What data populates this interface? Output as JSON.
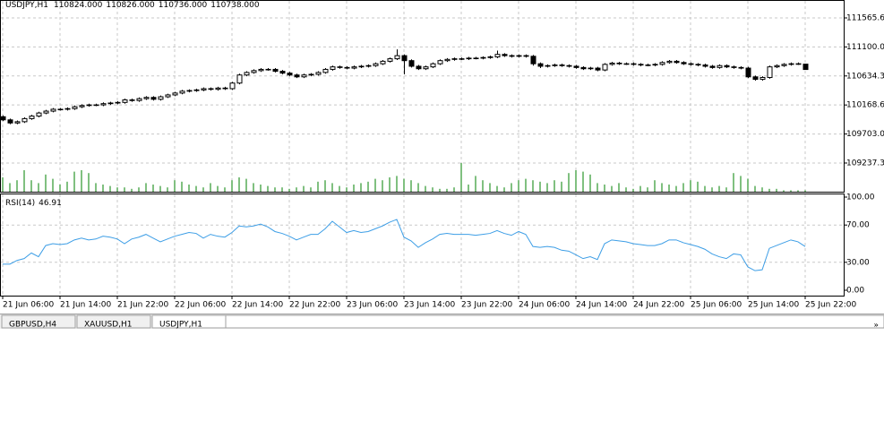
{
  "chart_data": [
    {
      "type": "candlestick",
      "title": "USDJPY,H1",
      "last_bar_labels": [
        "110824.000",
        "110826.000",
        "110736.000",
        "110738.000"
      ],
      "ohlc": [
        [
          109980,
          110000,
          109910,
          109930
        ],
        [
          109930,
          109950,
          109860,
          109880
        ],
        [
          109880,
          109920,
          109860,
          109900
        ],
        [
          109900,
          109970,
          109880,
          109950
        ],
        [
          109950,
          110010,
          109930,
          109990
        ],
        [
          109990,
          110060,
          109970,
          110040
        ],
        [
          110040,
          110090,
          110020,
          110070
        ],
        [
          110070,
          110120,
          110050,
          110100
        ],
        [
          110100,
          110120,
          110080,
          110100
        ],
        [
          110100,
          110130,
          110080,
          110110
        ],
        [
          110110,
          110160,
          110090,
          110140
        ],
        [
          110140,
          110180,
          110120,
          110160
        ],
        [
          110160,
          110190,
          110140,
          110170
        ],
        [
          110170,
          110190,
          110150,
          110170
        ],
        [
          110170,
          110210,
          110150,
          110190
        ],
        [
          110190,
          110220,
          110170,
          110200
        ],
        [
          110200,
          110230,
          110180,
          110210
        ],
        [
          110210,
          110270,
          110190,
          110250
        ],
        [
          110250,
          110270,
          110220,
          110240
        ],
        [
          110240,
          110290,
          110220,
          110270
        ],
        [
          110270,
          110310,
          110250,
          110290
        ],
        [
          110290,
          110310,
          110240,
          110260
        ],
        [
          110260,
          110320,
          110240,
          110300
        ],
        [
          110300,
          110350,
          110280,
          110330
        ],
        [
          110330,
          110380,
          110310,
          110360
        ],
        [
          110360,
          110410,
          110340,
          110390
        ],
        [
          110390,
          110420,
          110370,
          110400
        ],
        [
          110400,
          110430,
          110380,
          110410
        ],
        [
          110410,
          110450,
          110390,
          110430
        ],
        [
          110430,
          110450,
          110400,
          110420
        ],
        [
          110420,
          110460,
          110400,
          110440
        ],
        [
          110440,
          110460,
          110410,
          110430
        ],
        [
          110430,
          110540,
          110410,
          110520
        ],
        [
          110520,
          110670,
          110500,
          110650
        ],
        [
          110650,
          110710,
          110630,
          110690
        ],
        [
          110690,
          110740,
          110670,
          110720
        ],
        [
          110720,
          110760,
          110700,
          110740
        ],
        [
          110740,
          110760,
          110720,
          110740
        ],
        [
          110740,
          110760,
          110690,
          110710
        ],
        [
          110710,
          110730,
          110660,
          110680
        ],
        [
          110680,
          110700,
          110630,
          110650
        ],
        [
          110650,
          110670,
          110600,
          110620
        ],
        [
          110620,
          110670,
          110600,
          110650
        ],
        [
          110650,
          110680,
          110630,
          110660
        ],
        [
          110660,
          110710,
          110640,
          110690
        ],
        [
          110690,
          110760,
          110670,
          110740
        ],
        [
          110740,
          110800,
          110720,
          110780
        ],
        [
          110780,
          110800,
          110750,
          110770
        ],
        [
          110770,
          110790,
          110740,
          110760
        ],
        [
          110760,
          110800,
          110740,
          110780
        ],
        [
          110780,
          110810,
          110760,
          110790
        ],
        [
          110790,
          110820,
          110770,
          110800
        ],
        [
          110800,
          110850,
          110780,
          110830
        ],
        [
          110830,
          110890,
          110810,
          110870
        ],
        [
          110870,
          110930,
          110850,
          110910
        ],
        [
          110910,
          111060,
          110890,
          110960
        ],
        [
          110960,
          110980,
          110660,
          110880
        ],
        [
          110880,
          110900,
          110770,
          110790
        ],
        [
          110790,
          110810,
          110730,
          110750
        ],
        [
          110750,
          110800,
          110730,
          110780
        ],
        [
          110780,
          110850,
          110760,
          110830
        ],
        [
          110830,
          110900,
          110810,
          110880
        ],
        [
          110880,
          110920,
          110860,
          110900
        ],
        [
          110900,
          110930,
          110880,
          110910
        ],
        [
          110910,
          110930,
          110890,
          110910
        ],
        [
          110910,
          110940,
          110890,
          110920
        ],
        [
          110920,
          110940,
          110900,
          110920
        ],
        [
          110920,
          110950,
          110900,
          110930
        ],
        [
          110930,
          110960,
          110910,
          110940
        ],
        [
          110940,
          111040,
          110920,
          110980
        ],
        [
          110980,
          111000,
          110940,
          110960
        ],
        [
          110960,
          110980,
          110930,
          110950
        ],
        [
          110950,
          110980,
          110930,
          110960
        ],
        [
          110960,
          110980,
          110930,
          110950
        ],
        [
          110950,
          110970,
          110800,
          110830
        ],
        [
          110830,
          110850,
          110760,
          110790
        ],
        [
          110790,
          110820,
          110770,
          110800
        ],
        [
          110800,
          110830,
          110780,
          110810
        ],
        [
          110810,
          110830,
          110780,
          110800
        ],
        [
          110800,
          110820,
          110770,
          110790
        ],
        [
          110790,
          110810,
          110750,
          110770
        ],
        [
          110770,
          110790,
          110730,
          110750
        ],
        [
          110750,
          110780,
          110730,
          110760
        ],
        [
          110760,
          110780,
          110710,
          110730
        ],
        [
          110730,
          110840,
          110710,
          110820
        ],
        [
          110820,
          110860,
          110800,
          110840
        ],
        [
          110840,
          110860,
          110810,
          110830
        ],
        [
          110830,
          110850,
          110810,
          110830
        ],
        [
          110830,
          110850,
          110800,
          110820
        ],
        [
          110820,
          110840,
          110790,
          110810
        ],
        [
          110810,
          110830,
          110790,
          110810
        ],
        [
          110810,
          110840,
          110790,
          110820
        ],
        [
          110820,
          110870,
          110800,
          110850
        ],
        [
          110850,
          110890,
          110830,
          110870
        ],
        [
          110870,
          110890,
          110830,
          110850
        ],
        [
          110850,
          110870,
          110810,
          110830
        ],
        [
          110830,
          110850,
          110800,
          110820
        ],
        [
          110820,
          110840,
          110790,
          110810
        ],
        [
          110810,
          110830,
          110770,
          110790
        ],
        [
          110790,
          110810,
          110750,
          110770
        ],
        [
          110770,
          110820,
          110750,
          110800
        ],
        [
          110800,
          110820,
          110760,
          110780
        ],
        [
          110780,
          110800,
          110750,
          110770
        ],
        [
          110770,
          110790,
          110740,
          110760
        ],
        [
          110760,
          110780,
          110600,
          110620
        ],
        [
          110620,
          110640,
          110560,
          110580
        ],
        [
          110580,
          110630,
          110560,
          110610
        ],
        [
          110610,
          110800,
          110590,
          110780
        ],
        [
          110780,
          110820,
          110760,
          110800
        ],
        [
          110800,
          110840,
          110780,
          110820
        ],
        [
          110820,
          110850,
          110800,
          110830
        ],
        [
          110830,
          110850,
          110810,
          110830
        ],
        [
          110824,
          110826,
          110736,
          110738
        ]
      ],
      "volumes": [
        500,
        300,
        400,
        750,
        400,
        300,
        600,
        450,
        250,
        350,
        700,
        750,
        650,
        300,
        250,
        200,
        150,
        150,
        100,
        150,
        300,
        250,
        200,
        150,
        400,
        350,
        250,
        200,
        150,
        300,
        200,
        150,
        400,
        500,
        450,
        300,
        250,
        200,
        150,
        150,
        100,
        150,
        200,
        150,
        350,
        400,
        300,
        200,
        150,
        250,
        300,
        350,
        450,
        400,
        500,
        550,
        450,
        400,
        300,
        200,
        150,
        100,
        100,
        150,
        1000,
        250,
        550,
        400,
        300,
        200,
        150,
        300,
        400,
        450,
        400,
        350,
        300,
        400,
        350,
        650,
        750,
        700,
        600,
        300,
        250,
        200,
        300,
        150,
        100,
        200,
        150,
        400,
        300,
        250,
        200,
        300,
        400,
        350,
        200,
        150,
        200,
        150,
        650,
        550,
        450,
        200,
        150,
        100,
        100,
        50,
        50,
        50,
        50
      ],
      "volume_lim": [
        0,
        1000
      ],
      "ylim": [
        108777,
        111853
      ],
      "yticks": [
        109237.33,
        {
          "value": 109703,
          "label": "109703.00"
        },
        110168.66,
        110634.33,
        {
          "value": 111100,
          "label": "111100.00"
        },
        111565.66
      ],
      "xticks": [
        {
          "value": 0,
          "label": "21 Jun 06:00"
        },
        {
          "value": 8,
          "label": "21 Jun 14:00"
        },
        {
          "value": 16,
          "label": "21 Jun 22:00"
        },
        {
          "value": 24,
          "label": "22 Jun 06:00"
        },
        {
          "value": 32,
          "label": "22 Jun 14:00"
        },
        {
          "value": 40,
          "label": "22 Jun 22:00"
        },
        {
          "value": 48,
          "label": "23 Jun 06:00"
        },
        {
          "value": 56,
          "label": "23 Jun 14:00"
        },
        {
          "value": 64,
          "label": "23 Jun 22:00"
        },
        {
          "value": 72,
          "label": "24 Jun 06:00"
        },
        {
          "value": 80,
          "label": "24 Jun 14:00"
        },
        {
          "value": 88,
          "label": "24 Jun 22:00"
        },
        {
          "value": 96,
          "label": "25 Jun 06:00"
        },
        {
          "value": 104,
          "label": "25 Jun 14:00"
        },
        {
          "value": 112,
          "label": "25 Jun 22:00"
        }
      ],
      "up_color": "#ffffff",
      "down_color": "#000000",
      "volume_color": "#008000",
      "grid": true
    },
    {
      "type": "line",
      "title": "RSI(14)",
      "color": "#3d9ee6",
      "values": [
        28,
        28,
        32,
        34,
        40,
        36,
        48,
        50,
        49,
        50,
        54,
        56,
        54,
        55,
        58,
        57,
        55,
        50,
        55,
        57,
        60,
        56,
        52,
        55,
        58,
        60,
        62,
        61,
        56,
        60,
        58,
        57,
        62,
        69,
        68,
        69,
        71,
        68,
        63,
        61,
        58,
        54,
        57,
        60,
        60,
        66,
        74,
        68,
        62,
        64,
        62,
        63,
        66,
        69,
        73,
        76,
        57,
        53,
        46,
        51,
        55,
        60,
        61,
        60,
        60,
        60,
        59,
        60,
        61,
        64,
        61,
        59,
        63,
        60,
        47,
        46,
        47,
        46,
        43,
        42,
        38,
        34,
        36,
        33,
        50,
        54,
        53,
        52,
        50,
        49,
        48,
        48,
        50,
        54,
        54,
        51,
        49,
        47,
        44,
        39,
        36,
        34,
        39,
        38,
        25,
        21,
        22,
        45,
        48,
        51,
        54,
        52,
        46.91
      ],
      "ylim": [
        0,
        100
      ],
      "yticks": [
        {
          "value": 0,
          "label": "0.00"
        },
        {
          "value": 30,
          "label": "30.00"
        },
        {
          "value": 70,
          "label": "70.00"
        },
        {
          "value": 100,
          "label": "100.00"
        }
      ],
      "grid": true
    }
  ],
  "tabs": [
    "GBPUSD,H4",
    "XAUUSD,H1",
    "USDJPY,H1"
  ]
}
